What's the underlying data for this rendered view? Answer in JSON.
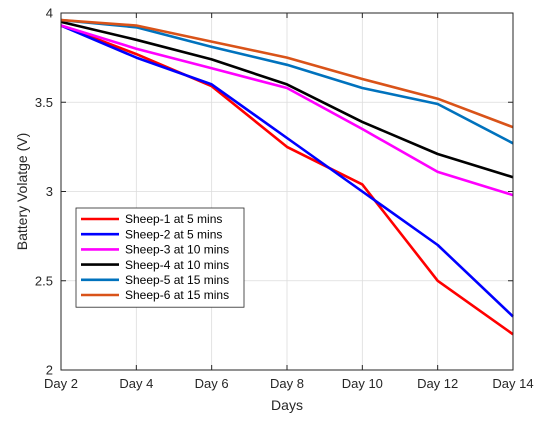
{
  "chart_data": {
    "type": "line",
    "title": "",
    "xlabel": "Days",
    "ylabel": "Battery Volatge (V)",
    "categories": [
      "Day 2",
      "Day 4",
      "Day 6",
      "Day 8",
      "Day 10",
      "Day 12",
      "Day 14"
    ],
    "y_ticks": [
      "2",
      "2.5",
      "3",
      "3.5",
      "4"
    ],
    "ylim": [
      2,
      4
    ],
    "grid": true,
    "legend_position": "lower-left",
    "series": [
      {
        "name": "Sheep-1 at 5 mins",
        "color": "#ff0000",
        "values": [
          3.93,
          3.77,
          3.59,
          3.25,
          3.04,
          2.5,
          2.2
        ]
      },
      {
        "name": "Sheep-2 at 5 mins",
        "color": "#0000ff",
        "values": [
          3.93,
          3.75,
          3.6,
          3.3,
          3.0,
          2.7,
          2.3
        ]
      },
      {
        "name": "Sheep-3 at 10 mins",
        "color": "#ff00ff",
        "values": [
          3.93,
          3.8,
          3.69,
          3.58,
          3.35,
          3.11,
          2.98
        ]
      },
      {
        "name": "Sheep-4 at 10 mins",
        "color": "#000000",
        "values": [
          3.95,
          3.85,
          3.74,
          3.6,
          3.39,
          3.21,
          3.08
        ]
      },
      {
        "name": "Sheep-5 at 15 mins",
        "color": "#0072bd",
        "values": [
          3.96,
          3.92,
          3.81,
          3.71,
          3.58,
          3.49,
          3.27
        ]
      },
      {
        "name": "Sheep-6 at 15 mins",
        "color": "#d95319",
        "values": [
          3.96,
          3.93,
          3.84,
          3.75,
          3.63,
          3.52,
          3.36
        ]
      }
    ]
  }
}
